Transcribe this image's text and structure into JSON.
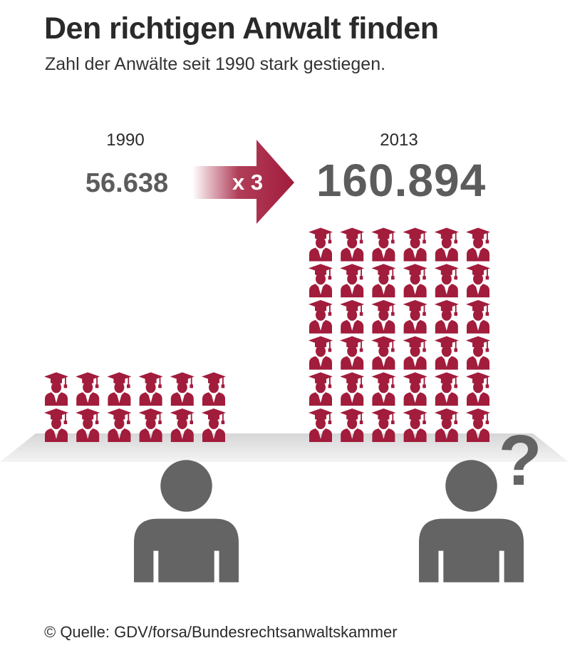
{
  "header": {
    "title": "Den richtigen Anwalt finden",
    "subtitle": "Zahl der Anwälte seit 1990 stark gestiegen."
  },
  "comparison": {
    "multiplier": "x 3"
  },
  "footer": {
    "source": "© Quelle: GDV/forsa/Bundesrechtsanwaltskammer"
  },
  "colors": {
    "accent": "#a21c3c",
    "person": "#646464",
    "value_text": "#5c5c5c"
  },
  "icons": {
    "unit": "graduate-icon",
    "client": "person-icon",
    "question": "question-mark-icon"
  },
  "chart_data": {
    "type": "pictogram",
    "categories": [
      "1990",
      "2013"
    ],
    "values": [
      56638,
      160894
    ],
    "value_labels": [
      "56.638",
      "160.894"
    ],
    "icon_counts": [
      12,
      36
    ],
    "icon_columns": 6
  }
}
